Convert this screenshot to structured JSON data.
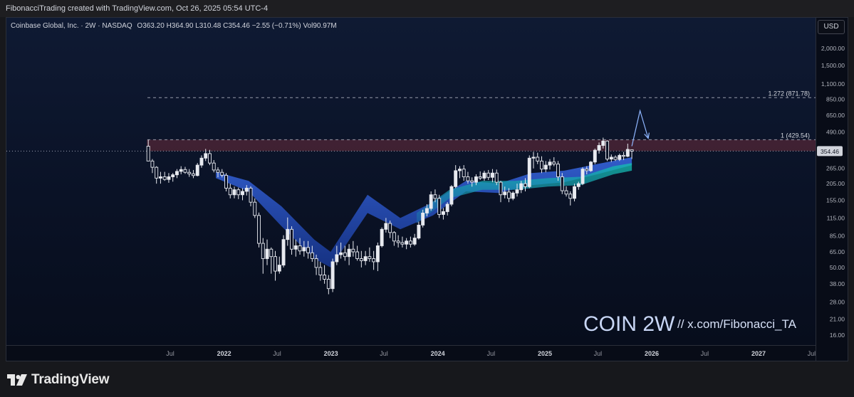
{
  "header": {
    "attribution": "FibonacciTrading created with TradingView.com, Oct 26, 2025 05:54 UTC-4"
  },
  "legend": {
    "title": "Coinbase Global, Inc. · 2W · NASDAQ",
    "open_label": "O",
    "open": "363.20",
    "high_label": "H",
    "high": "364.90",
    "low_label": "L",
    "low": "310.48",
    "close_label": "C",
    "close": "354.46",
    "change": "−2.55 (−0.71%)",
    "vol_label": "Vol",
    "vol": "90.97M"
  },
  "currency_button": "USD",
  "annotations": {
    "fib_1272": "1.272 (871.78)",
    "fib_1": "1 (429.54)",
    "last_price": "354.46",
    "watermark_symbol": "COIN 2W",
    "watermark_handle": "//  x.com/Fibonacci_TA"
  },
  "footer": {
    "brand": "TradingView"
  },
  "colors": {
    "background": "#0a1226",
    "candle_up": "#e8eaf0",
    "candle_down": "#0a1226",
    "ribbon_blue": "#2962ff",
    "ribbon_teal": "#0fb8a8",
    "fib_zone": "#6b2b3a",
    "price_label_bg": "#d1d4dc"
  },
  "chart_data": {
    "type": "candlestick",
    "symbol": "COIN",
    "interval": "2W",
    "scale": "log",
    "y_ticks": [
      2000,
      1500,
      1100,
      850,
      650,
      490,
      355,
      265,
      205,
      155,
      115,
      85,
      65,
      50,
      38,
      28,
      21,
      16
    ],
    "y_tick_labels": [
      "2,000.00",
      "1,500.00",
      "1,100.00",
      "850.00",
      "650.00",
      "490.00",
      "",
      "265.00",
      "205.00",
      "155.00",
      "115.00",
      "85.00",
      "65.00",
      "50.00",
      "38.00",
      "28.00",
      "21.00",
      "16.00"
    ],
    "x_ticks": [
      "Jul",
      "2022",
      "Jul",
      "2023",
      "Jul",
      "2024",
      "Jul",
      "2025",
      "Jul",
      "2026",
      "Jul",
      "2027",
      "Jul"
    ],
    "x_tick_dates": [
      "2021-07-01",
      "2022-01-01",
      "2022-07-01",
      "2023-01-01",
      "2023-07-01",
      "2024-01-01",
      "2024-07-01",
      "2025-01-01",
      "2025-07-01",
      "2026-01-01",
      "2026-07-01",
      "2027-01-01",
      "2027-07-01"
    ],
    "horizontal_levels": [
      {
        "label": "1.272 (871.78)",
        "value": 871.78,
        "style": "dashed"
      },
      {
        "label": "1 (429.54)",
        "value": 429.54,
        "style": "dashed"
      }
    ],
    "fib_zone": {
      "from": 355,
      "to": 429.54
    },
    "projection": {
      "dates": [
        "2025-10-25",
        "2025-11-22",
        "2025-12-20"
      ],
      "values": [
        385,
        700,
        440
      ]
    },
    "ribbon_1": {
      "dates": [
        "2021-12-04",
        "2022-03-26",
        "2022-07-16",
        "2022-11-05",
        "2022-12-31",
        "2023-05-06",
        "2023-08-26",
        "2023-12-16",
        "2024-04-06",
        "2024-07-27",
        "2024-11-16",
        "2025-03-08",
        "2025-06-28",
        "2025-10-25"
      ],
      "upper": [
        250,
        215,
        140,
        80,
        65,
        170,
        115,
        150,
        215,
        205,
        245,
        255,
        285,
        320
      ],
      "lower": [
        225,
        180,
        100,
        58,
        50,
        125,
        95,
        120,
        180,
        175,
        200,
        210,
        240,
        280
      ]
    },
    "ribbon_2": {
      "dates": [
        "2023-10-21",
        "2024-02-10",
        "2024-06-01",
        "2024-09-21",
        "2025-01-11",
        "2025-05-03",
        "2025-08-23",
        "2025-10-25"
      ],
      "upper": [
        125,
        185,
        215,
        215,
        225,
        230,
        275,
        290
      ],
      "lower": [
        105,
        160,
        185,
        185,
        195,
        200,
        240,
        255
      ]
    },
    "candles": [
      {
        "date": "2021-04-17",
        "o": 385,
        "h": 429.54,
        "l": 300,
        "c": 300
      },
      {
        "date": "2021-05-01",
        "o": 300,
        "h": 310,
        "l": 245,
        "c": 270
      },
      {
        "date": "2021-05-15",
        "o": 270,
        "h": 275,
        "l": 205,
        "c": 225
      },
      {
        "date": "2021-05-29",
        "o": 225,
        "h": 250,
        "l": 205,
        "c": 230
      },
      {
        "date": "2021-06-12",
        "o": 230,
        "h": 250,
        "l": 215,
        "c": 220
      },
      {
        "date": "2021-06-26",
        "o": 220,
        "h": 245,
        "l": 208,
        "c": 230
      },
      {
        "date": "2021-07-10",
        "o": 230,
        "h": 245,
        "l": 212,
        "c": 238
      },
      {
        "date": "2021-07-24",
        "o": 238,
        "h": 262,
        "l": 225,
        "c": 252
      },
      {
        "date": "2021-08-07",
        "o": 252,
        "h": 275,
        "l": 240,
        "c": 260
      },
      {
        "date": "2021-08-21",
        "o": 260,
        "h": 272,
        "l": 242,
        "c": 248
      },
      {
        "date": "2021-09-04",
        "o": 248,
        "h": 262,
        "l": 230,
        "c": 242
      },
      {
        "date": "2021-09-18",
        "o": 242,
        "h": 258,
        "l": 225,
        "c": 235
      },
      {
        "date": "2021-10-02",
        "o": 235,
        "h": 290,
        "l": 232,
        "c": 280
      },
      {
        "date": "2021-10-16",
        "o": 280,
        "h": 330,
        "l": 268,
        "c": 315
      },
      {
        "date": "2021-10-30",
        "o": 315,
        "h": 368,
        "l": 300,
        "c": 340
      },
      {
        "date": "2021-11-13",
        "o": 340,
        "h": 362,
        "l": 280,
        "c": 290
      },
      {
        "date": "2021-11-27",
        "o": 290,
        "h": 305,
        "l": 248,
        "c": 258
      },
      {
        "date": "2021-12-11",
        "o": 258,
        "h": 270,
        "l": 228,
        "c": 248
      },
      {
        "date": "2021-12-25",
        "o": 248,
        "h": 262,
        "l": 228,
        "c": 236
      },
      {
        "date": "2022-01-08",
        "o": 236,
        "h": 245,
        "l": 180,
        "c": 190
      },
      {
        "date": "2022-01-22",
        "o": 190,
        "h": 205,
        "l": 160,
        "c": 170
      },
      {
        "date": "2022-02-05",
        "o": 170,
        "h": 195,
        "l": 160,
        "c": 185
      },
      {
        "date": "2022-02-19",
        "o": 185,
        "h": 192,
        "l": 158,
        "c": 170
      },
      {
        "date": "2022-03-05",
        "o": 170,
        "h": 190,
        "l": 155,
        "c": 180
      },
      {
        "date": "2022-03-19",
        "o": 180,
        "h": 200,
        "l": 168,
        "c": 190
      },
      {
        "date": "2022-04-02",
        "o": 190,
        "h": 196,
        "l": 140,
        "c": 150
      },
      {
        "date": "2022-04-16",
        "o": 150,
        "h": 160,
        "l": 115,
        "c": 120
      },
      {
        "date": "2022-04-30",
        "o": 120,
        "h": 126,
        "l": 70,
        "c": 75
      },
      {
        "date": "2022-05-14",
        "o": 75,
        "h": 82,
        "l": 45,
        "c": 58
      },
      {
        "date": "2022-05-28",
        "o": 58,
        "h": 80,
        "l": 52,
        "c": 68
      },
      {
        "date": "2022-06-11",
        "o": 68,
        "h": 70,
        "l": 45,
        "c": 60
      },
      {
        "date": "2022-06-25",
        "o": 60,
        "h": 66,
        "l": 40,
        "c": 47
      },
      {
        "date": "2022-07-09",
        "o": 47,
        "h": 60,
        "l": 45,
        "c": 52
      },
      {
        "date": "2022-07-23",
        "o": 52,
        "h": 86,
        "l": 50,
        "c": 80
      },
      {
        "date": "2022-08-06",
        "o": 80,
        "h": 116,
        "l": 72,
        "c": 95
      },
      {
        "date": "2022-08-20",
        "o": 95,
        "h": 100,
        "l": 62,
        "c": 68
      },
      {
        "date": "2022-09-03",
        "o": 68,
        "h": 80,
        "l": 60,
        "c": 72
      },
      {
        "date": "2022-09-17",
        "o": 72,
        "h": 82,
        "l": 62,
        "c": 66
      },
      {
        "date": "2022-10-01",
        "o": 66,
        "h": 78,
        "l": 60,
        "c": 70
      },
      {
        "date": "2022-10-15",
        "o": 70,
        "h": 78,
        "l": 58,
        "c": 64
      },
      {
        "date": "2022-10-29",
        "o": 64,
        "h": 72,
        "l": 55,
        "c": 58
      },
      {
        "date": "2022-11-12",
        "o": 58,
        "h": 62,
        "l": 44,
        "c": 50
      },
      {
        "date": "2022-11-26",
        "o": 50,
        "h": 55,
        "l": 40,
        "c": 44
      },
      {
        "date": "2022-12-10",
        "o": 44,
        "h": 52,
        "l": 38,
        "c": 41
      },
      {
        "date": "2022-12-24",
        "o": 41,
        "h": 44,
        "l": 31.83,
        "c": 35
      },
      {
        "date": "2023-01-07",
        "o": 35,
        "h": 58,
        "l": 33,
        "c": 55
      },
      {
        "date": "2023-01-21",
        "o": 55,
        "h": 72,
        "l": 52,
        "c": 62
      },
      {
        "date": "2023-02-04",
        "o": 62,
        "h": 76,
        "l": 58,
        "c": 64
      },
      {
        "date": "2023-02-18",
        "o": 64,
        "h": 72,
        "l": 56,
        "c": 60
      },
      {
        "date": "2023-03-04",
        "o": 60,
        "h": 74,
        "l": 52,
        "c": 68
      },
      {
        "date": "2023-03-18",
        "o": 68,
        "h": 78,
        "l": 60,
        "c": 65
      },
      {
        "date": "2023-04-01",
        "o": 65,
        "h": 72,
        "l": 56,
        "c": 58
      },
      {
        "date": "2023-04-15",
        "o": 58,
        "h": 66,
        "l": 50,
        "c": 56
      },
      {
        "date": "2023-04-29",
        "o": 56,
        "h": 66,
        "l": 52,
        "c": 60
      },
      {
        "date": "2023-05-13",
        "o": 60,
        "h": 70,
        "l": 55,
        "c": 58
      },
      {
        "date": "2023-05-27",
        "o": 58,
        "h": 66,
        "l": 48,
        "c": 55
      },
      {
        "date": "2023-06-10",
        "o": 55,
        "h": 76,
        "l": 47,
        "c": 72
      },
      {
        "date": "2023-06-24",
        "o": 72,
        "h": 98,
        "l": 70,
        "c": 95
      },
      {
        "date": "2023-07-08",
        "o": 95,
        "h": 115,
        "l": 90,
        "c": 105
      },
      {
        "date": "2023-07-22",
        "o": 105,
        "h": 110,
        "l": 82,
        "c": 90
      },
      {
        "date": "2023-08-05",
        "o": 90,
        "h": 92,
        "l": 72,
        "c": 78
      },
      {
        "date": "2023-08-19",
        "o": 78,
        "h": 86,
        "l": 70,
        "c": 76
      },
      {
        "date": "2023-09-02",
        "o": 76,
        "h": 84,
        "l": 70,
        "c": 74
      },
      {
        "date": "2023-09-16",
        "o": 74,
        "h": 82,
        "l": 68,
        "c": 78
      },
      {
        "date": "2023-09-30",
        "o": 78,
        "h": 84,
        "l": 70,
        "c": 74
      },
      {
        "date": "2023-10-14",
        "o": 74,
        "h": 88,
        "l": 72,
        "c": 82
      },
      {
        "date": "2023-10-28",
        "o": 82,
        "h": 108,
        "l": 80,
        "c": 102
      },
      {
        "date": "2023-11-11",
        "o": 102,
        "h": 132,
        "l": 98,
        "c": 125
      },
      {
        "date": "2023-11-25",
        "o": 125,
        "h": 145,
        "l": 118,
        "c": 135
      },
      {
        "date": "2023-12-09",
        "o": 135,
        "h": 180,
        "l": 130,
        "c": 170
      },
      {
        "date": "2023-12-23",
        "o": 170,
        "h": 186,
        "l": 150,
        "c": 160
      },
      {
        "date": "2024-01-06",
        "o": 160,
        "h": 170,
        "l": 115,
        "c": 122
      },
      {
        "date": "2024-01-20",
        "o": 122,
        "h": 136,
        "l": 112,
        "c": 128
      },
      {
        "date": "2024-02-03",
        "o": 128,
        "h": 150,
        "l": 120,
        "c": 145
      },
      {
        "date": "2024-02-17",
        "o": 145,
        "h": 200,
        "l": 140,
        "c": 195
      },
      {
        "date": "2024-03-02",
        "o": 195,
        "h": 280,
        "l": 190,
        "c": 255
      },
      {
        "date": "2024-03-16",
        "o": 255,
        "h": 275,
        "l": 225,
        "c": 262
      },
      {
        "date": "2024-03-30",
        "o": 262,
        "h": 280,
        "l": 215,
        "c": 230
      },
      {
        "date": "2024-04-13",
        "o": 230,
        "h": 250,
        "l": 205,
        "c": 215
      },
      {
        "date": "2024-04-27",
        "o": 215,
        "h": 228,
        "l": 195,
        "c": 210
      },
      {
        "date": "2024-05-11",
        "o": 210,
        "h": 240,
        "l": 200,
        "c": 230
      },
      {
        "date": "2024-05-25",
        "o": 230,
        "h": 252,
        "l": 218,
        "c": 225
      },
      {
        "date": "2024-06-08",
        "o": 225,
        "h": 255,
        "l": 215,
        "c": 245
      },
      {
        "date": "2024-06-22",
        "o": 245,
        "h": 258,
        "l": 218,
        "c": 228
      },
      {
        "date": "2024-07-06",
        "o": 228,
        "h": 262,
        "l": 210,
        "c": 245
      },
      {
        "date": "2024-07-20",
        "o": 245,
        "h": 260,
        "l": 200,
        "c": 210
      },
      {
        "date": "2024-08-03",
        "o": 210,
        "h": 215,
        "l": 150,
        "c": 170
      },
      {
        "date": "2024-08-17",
        "o": 170,
        "h": 195,
        "l": 160,
        "c": 178
      },
      {
        "date": "2024-08-31",
        "o": 178,
        "h": 190,
        "l": 150,
        "c": 160
      },
      {
        "date": "2024-09-14",
        "o": 160,
        "h": 180,
        "l": 155,
        "c": 175
      },
      {
        "date": "2024-09-28",
        "o": 175,
        "h": 205,
        "l": 165,
        "c": 185
      },
      {
        "date": "2024-10-12",
        "o": 185,
        "h": 215,
        "l": 175,
        "c": 205
      },
      {
        "date": "2024-10-26",
        "o": 205,
        "h": 225,
        "l": 180,
        "c": 195
      },
      {
        "date": "2024-11-09",
        "o": 195,
        "h": 330,
        "l": 190,
        "c": 315
      },
      {
        "date": "2024-11-23",
        "o": 315,
        "h": 350,
        "l": 265,
        "c": 320
      },
      {
        "date": "2024-12-07",
        "o": 320,
        "h": 345,
        "l": 285,
        "c": 300
      },
      {
        "date": "2024-12-21",
        "o": 300,
        "h": 325,
        "l": 245,
        "c": 262
      },
      {
        "date": "2025-01-04",
        "o": 262,
        "h": 300,
        "l": 248,
        "c": 280
      },
      {
        "date": "2025-01-18",
        "o": 280,
        "h": 310,
        "l": 260,
        "c": 295
      },
      {
        "date": "2025-02-01",
        "o": 295,
        "h": 320,
        "l": 275,
        "c": 285
      },
      {
        "date": "2025-02-15",
        "o": 285,
        "h": 300,
        "l": 215,
        "c": 230
      },
      {
        "date": "2025-03-01",
        "o": 230,
        "h": 245,
        "l": 172,
        "c": 182
      },
      {
        "date": "2025-03-15",
        "o": 182,
        "h": 196,
        "l": 165,
        "c": 172
      },
      {
        "date": "2025-03-29",
        "o": 172,
        "h": 180,
        "l": 142,
        "c": 160
      },
      {
        "date": "2025-04-12",
        "o": 160,
        "h": 205,
        "l": 152,
        "c": 195
      },
      {
        "date": "2025-04-26",
        "o": 195,
        "h": 212,
        "l": 185,
        "c": 205
      },
      {
        "date": "2025-05-10",
        "o": 205,
        "h": 270,
        "l": 200,
        "c": 262
      },
      {
        "date": "2025-05-24",
        "o": 262,
        "h": 275,
        "l": 240,
        "c": 255
      },
      {
        "date": "2025-06-07",
        "o": 255,
        "h": 300,
        "l": 250,
        "c": 295
      },
      {
        "date": "2025-06-21",
        "o": 295,
        "h": 370,
        "l": 285,
        "c": 360
      },
      {
        "date": "2025-07-05",
        "o": 360,
        "h": 410,
        "l": 340,
        "c": 390
      },
      {
        "date": "2025-07-19",
        "o": 390,
        "h": 444.65,
        "l": 370,
        "c": 420
      },
      {
        "date": "2025-08-02",
        "o": 420,
        "h": 425,
        "l": 300,
        "c": 310
      },
      {
        "date": "2025-08-16",
        "o": 310,
        "h": 335,
        "l": 295,
        "c": 320
      },
      {
        "date": "2025-08-30",
        "o": 320,
        "h": 330,
        "l": 300,
        "c": 308
      },
      {
        "date": "2025-09-13",
        "o": 308,
        "h": 340,
        "l": 300,
        "c": 330
      },
      {
        "date": "2025-09-27",
        "o": 330,
        "h": 350,
        "l": 305,
        "c": 325
      },
      {
        "date": "2025-10-11",
        "o": 325,
        "h": 402,
        "l": 320,
        "c": 365
      },
      {
        "date": "2025-10-25",
        "o": 363.2,
        "h": 364.9,
        "l": 310.48,
        "c": 354.46
      }
    ]
  }
}
